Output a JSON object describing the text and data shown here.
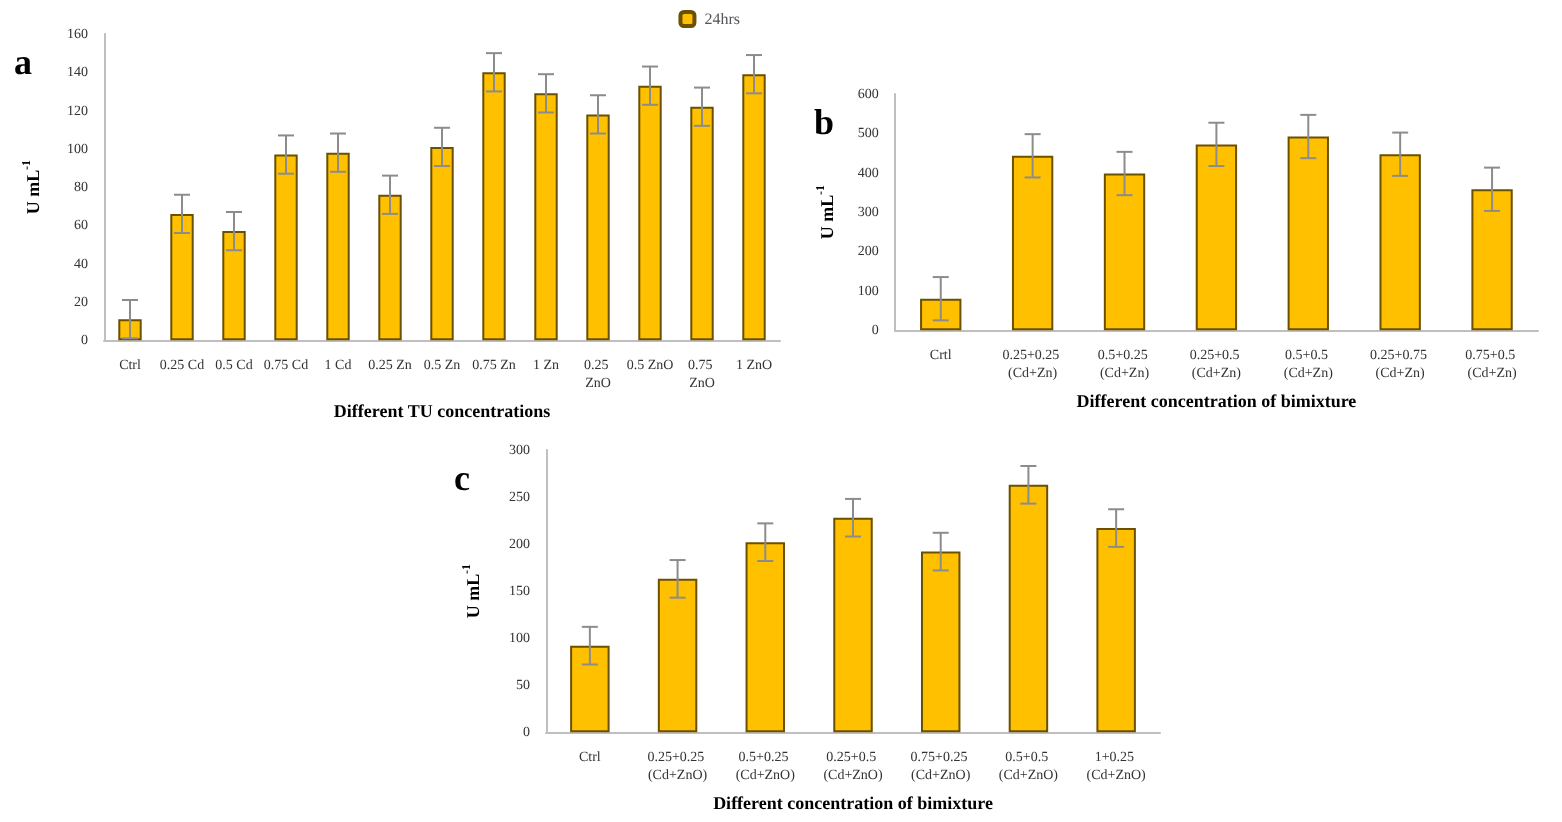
{
  "chart_data": [
    {
      "type": "bar",
      "title": "a",
      "xlabel": "Different TU concentrations",
      "ylabel": "U mL$^{-1}$",
      "categories": [
        "Ctrl",
        "0.25 Cd",
        "0.5 Cd",
        "0.75 Cd",
        "1 Cd",
        "0.25 Zn",
        "0.5 Zn",
        "0.75 Zn",
        "1 Zn",
        "0.25 ZnO",
        "0.5 ZnO",
        "0.75 ZnO",
        "1 ZnO"
      ],
      "series": [
        {
          "name": "24hrs",
          "color": "#ffc000",
          "values": [
            11,
            66,
            57,
            97,
            98,
            76,
            101,
            140,
            129,
            118,
            133,
            122,
            139
          ],
          "errors": [
            10,
            10,
            10,
            10,
            10,
            10,
            10,
            10,
            10,
            10,
            10,
            10,
            10
          ]
        }
      ],
      "ylim": [
        0,
        160
      ],
      "yticks": [
        0,
        20,
        40,
        60,
        80,
        100,
        120,
        140,
        160
      ],
      "grid": false,
      "legend": "top right"
    },
    {
      "type": "bar",
      "title": "b",
      "xlabel": "Different concentration of bimixture",
      "ylabel": "U mL$^{-1}$",
      "categories": [
        "Crtl",
        "0.25+0.25 (Cd+Zn)",
        "0.5+0.25 (Cd+Zn)",
        "0.25+0.5 (Cd+Zn)",
        "0.5+0.5 (Cd+Zn)",
        "0.25+0.75 (Cd+Zn)",
        "0.75+0.5 (Cd+Zn)"
      ],
      "series": [
        {
          "color": "#ffc000",
          "values": [
            80,
            443,
            398,
            472,
            492,
            447,
            358
          ],
          "errors": [
            55,
            55,
            55,
            55,
            55,
            55,
            55
          ]
        }
      ],
      "ylim": [
        0,
        600
      ],
      "yticks": [
        0,
        100,
        200,
        300,
        400,
        500,
        600
      ],
      "grid": false,
      "legend": false
    },
    {
      "type": "bar",
      "title": "c",
      "xlabel": "Different concentration of bimixture",
      "ylabel": "U mL$^{-1}$",
      "categories": [
        "Ctrl",
        "0.25+0.25 (Cd+ZnO)",
        "0.5+0.25 (Cd+ZnO)",
        "0.25+0.5 (Cd+ZnO)",
        "0.75+0.25 (Cd+ZnO)",
        "0.5+0.5 (Cd+ZnO)",
        "1+0.25 (Cd+ZnO)"
      ],
      "series": [
        {
          "color": "#ffc000",
          "values": [
            92,
            163,
            202,
            228,
            192,
            263,
            217
          ],
          "errors": [
            20,
            20,
            20,
            20,
            20,
            20,
            20
          ]
        }
      ],
      "ylim": [
        0,
        300
      ],
      "yticks": [
        0,
        50,
        100,
        150,
        200,
        250,
        300
      ],
      "grid": false,
      "legend": false
    }
  ]
}
